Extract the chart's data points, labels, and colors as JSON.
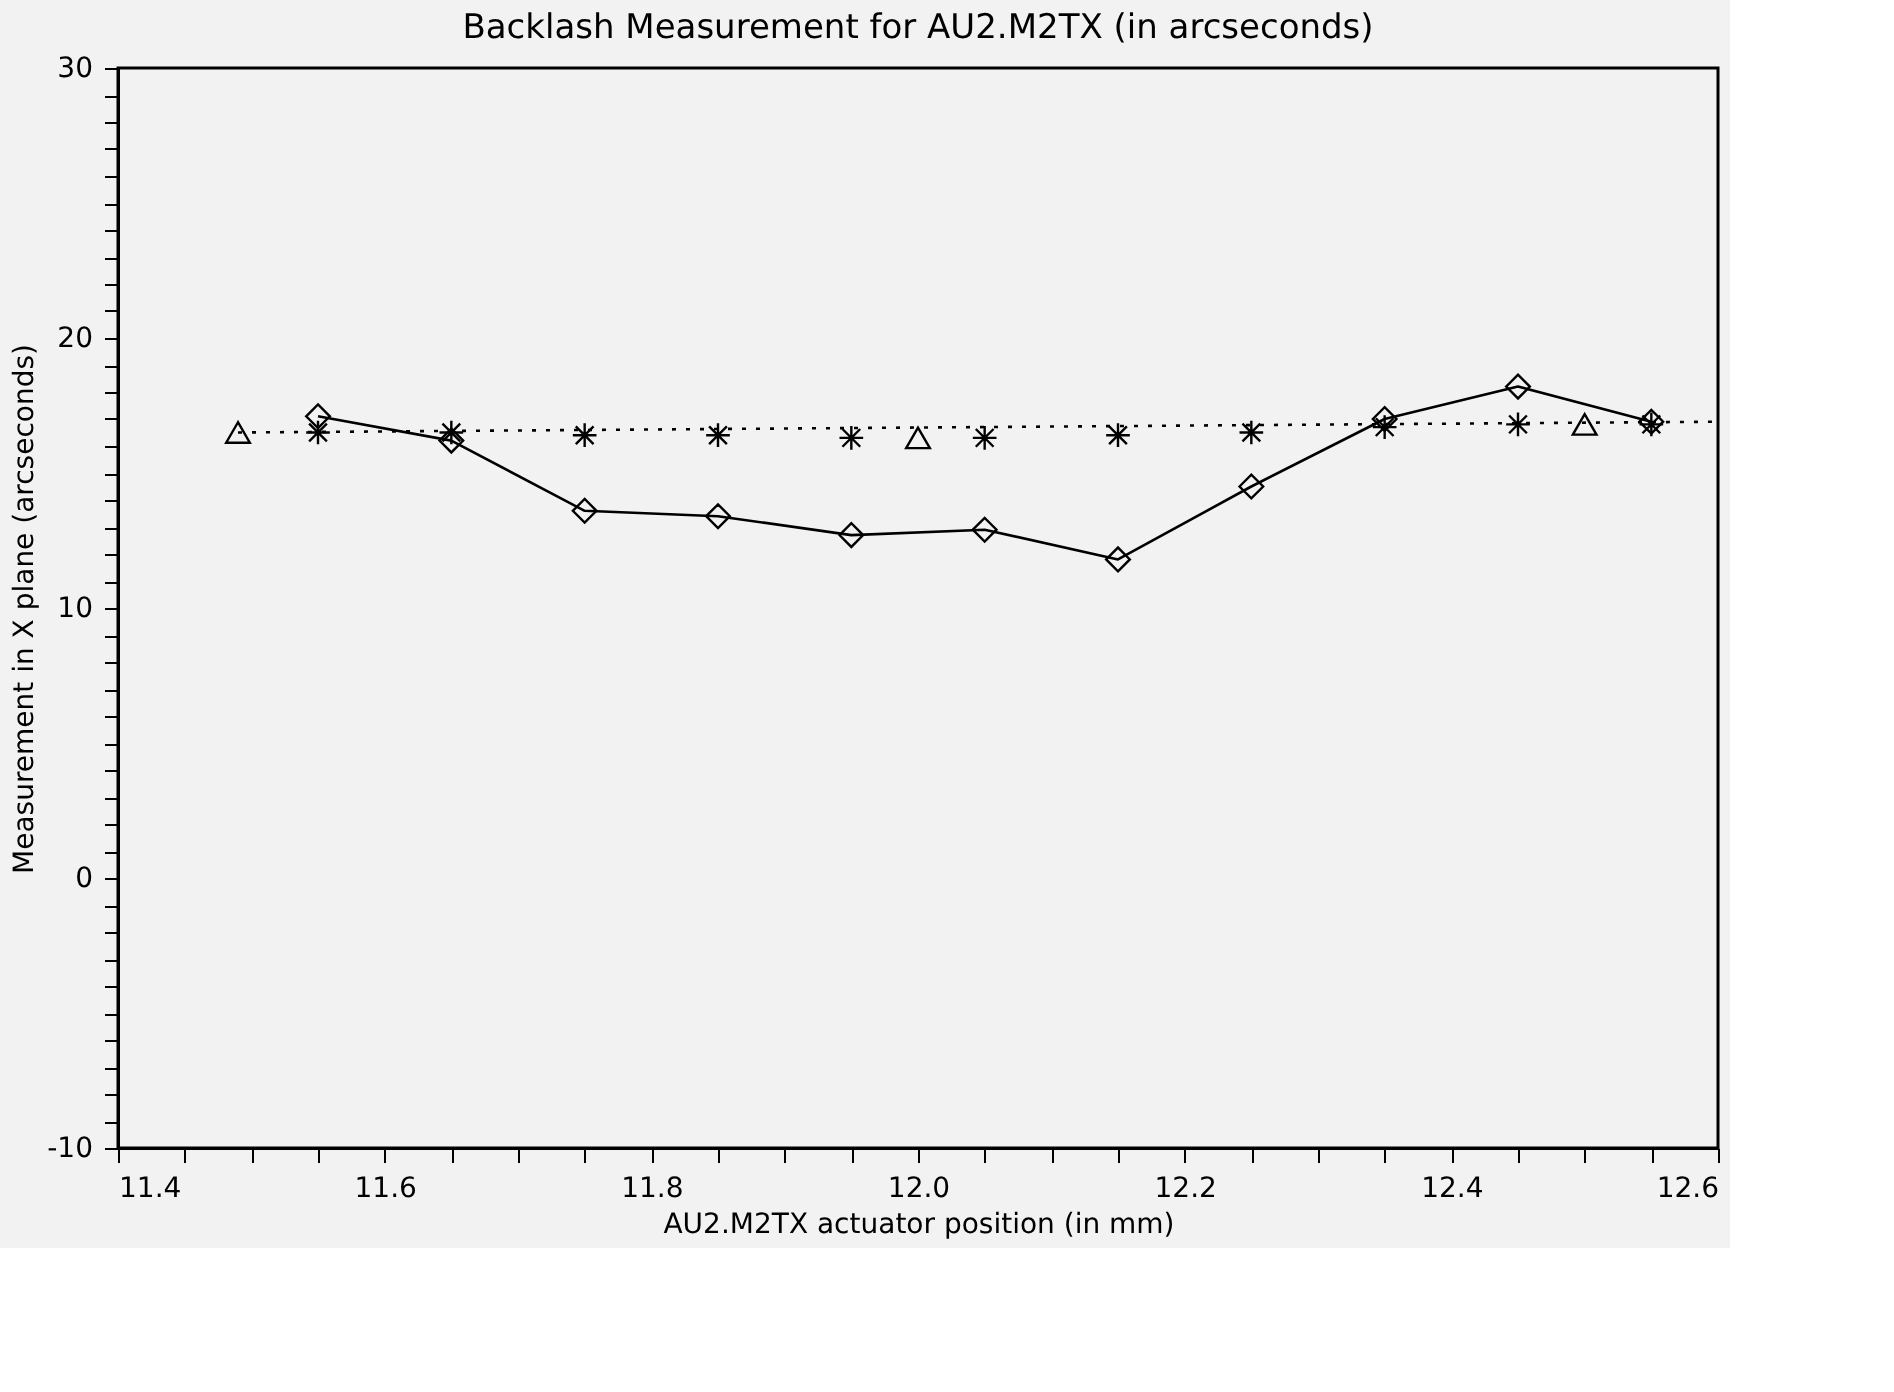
{
  "chart_data": {
    "type": "line",
    "title": "Backlash Measurement for AU2.M2TX (in arcseconds)",
    "xlabel": "AU2.M2TX actuator position (in mm)",
    "ylabel": "Measurement in X plane (arcseconds)",
    "xlim": [
      11.4,
      12.6
    ],
    "ylim": [
      -10,
      30
    ],
    "xticks": [
      {
        "value": 11.4,
        "label": "11.4"
      },
      {
        "value": 11.45,
        "label": null
      },
      {
        "value": 11.5,
        "label": null
      },
      {
        "value": 11.55,
        "label": null
      },
      {
        "value": 11.6,
        "label": "11.6"
      },
      {
        "value": 11.65,
        "label": null
      },
      {
        "value": 11.7,
        "label": null
      },
      {
        "value": 11.75,
        "label": null
      },
      {
        "value": 11.8,
        "label": "11.8"
      },
      {
        "value": 11.85,
        "label": null
      },
      {
        "value": 11.9,
        "label": null
      },
      {
        "value": 11.95,
        "label": null
      },
      {
        "value": 12.0,
        "label": "12.0"
      },
      {
        "value": 12.05,
        "label": null
      },
      {
        "value": 12.1,
        "label": null
      },
      {
        "value": 12.15,
        "label": null
      },
      {
        "value": 12.2,
        "label": "12.2"
      },
      {
        "value": 12.25,
        "label": null
      },
      {
        "value": 12.3,
        "label": null
      },
      {
        "value": 12.35,
        "label": null
      },
      {
        "value": 12.4,
        "label": "12.4"
      },
      {
        "value": 12.45,
        "label": null
      },
      {
        "value": 12.5,
        "label": null
      },
      {
        "value": 12.55,
        "label": null
      },
      {
        "value": 12.6,
        "label": "12.6"
      }
    ],
    "yticks": [
      -10,
      {
        "value": -9,
        "label": null
      },
      {
        "value": -8,
        "label": null
      },
      {
        "value": -7,
        "label": null
      },
      {
        "value": -6,
        "label": null
      },
      {
        "value": -5,
        "label": null
      },
      {
        "value": -4,
        "label": null
      },
      {
        "value": -3,
        "label": null
      },
      {
        "value": -2,
        "label": null
      },
      {
        "value": -1,
        "label": null
      },
      0,
      {
        "value": 1,
        "label": null
      },
      {
        "value": 2,
        "label": null
      },
      {
        "value": 3,
        "label": null
      },
      {
        "value": 4,
        "label": null
      },
      {
        "value": 5,
        "label": null
      },
      {
        "value": 6,
        "label": null
      },
      {
        "value": 7,
        "label": null
      },
      {
        "value": 8,
        "label": null
      },
      {
        "value": 9,
        "label": null
      },
      10,
      {
        "value": 11,
        "label": null
      },
      {
        "value": 12,
        "label": null
      },
      {
        "value": 13,
        "label": null
      },
      {
        "value": 14,
        "label": null
      },
      {
        "value": 15,
        "label": null
      },
      {
        "value": 16,
        "label": null
      },
      {
        "value": 17,
        "label": null
      },
      {
        "value": 18,
        "label": null
      },
      {
        "value": 19,
        "label": null
      },
      20,
      {
        "value": 21,
        "label": null
      },
      {
        "value": 22,
        "label": null
      },
      {
        "value": 23,
        "label": null
      },
      {
        "value": 24,
        "label": null
      },
      {
        "value": 25,
        "label": null
      },
      {
        "value": 26,
        "label": null
      },
      {
        "value": 27,
        "label": null
      },
      {
        "value": 28,
        "label": null
      },
      {
        "value": 29,
        "label": null
      },
      30
    ],
    "series": [
      {
        "type": "line",
        "marker": "diamond",
        "line_style": "solid",
        "color": "#000000",
        "x": [
          11.55,
          11.65,
          11.75,
          11.85,
          11.95,
          12.05,
          12.15,
          12.25,
          12.35,
          12.45,
          12.55
        ],
        "values": [
          17.1,
          16.2,
          13.6,
          13.4,
          12.7,
          12.9,
          11.8,
          14.5,
          17.0,
          18.2,
          16.9
        ]
      },
      {
        "type": "scatter",
        "marker": "cross",
        "color": "#000000",
        "x": [
          11.55,
          11.65,
          11.75,
          11.85,
          11.95,
          12.05,
          12.15,
          12.25,
          12.35,
          12.45,
          12.55
        ],
        "values": [
          16.5,
          16.5,
          16.4,
          16.4,
          16.3,
          16.3,
          16.4,
          16.5,
          16.7,
          16.8,
          16.8
        ]
      },
      {
        "type": "scatter",
        "marker": "triangle",
        "color": "#000000",
        "x": [
          11.49,
          12.0,
          12.5
        ],
        "values": [
          16.5,
          16.3,
          16.8
        ]
      },
      {
        "type": "line",
        "marker": "none",
        "line_style": "dotted",
        "color": "#000000",
        "x": [
          11.49,
          12.6
        ],
        "values": [
          16.5,
          16.9
        ]
      }
    ]
  }
}
